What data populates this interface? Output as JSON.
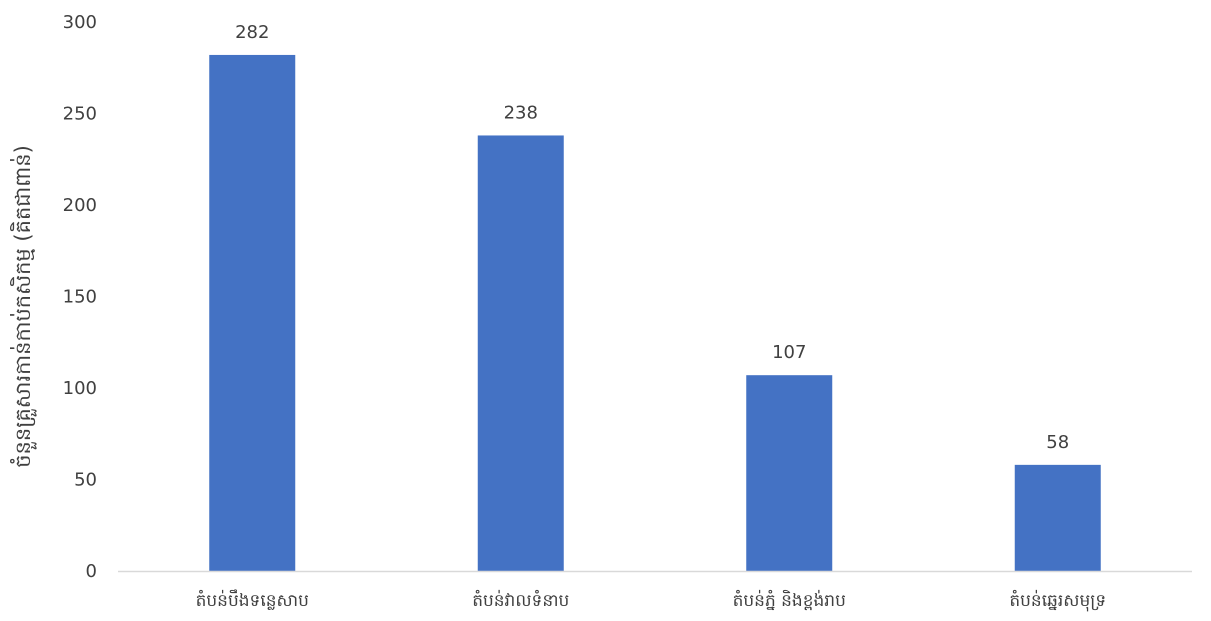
{
  "chart_data": {
    "type": "bar",
    "categories": [
      "តំបន់បឹងទន្លេសាប",
      "តំបន់វាលទំនាប",
      "តំបន់ភ្នំ និងខ្ពង់រាប",
      "តំបន់ឆ្នេរសមុទ្រ"
    ],
    "values": [
      282,
      238,
      107,
      58
    ],
    "data_labels": [
      "282",
      "238",
      "107",
      "58"
    ],
    "title": "",
    "xlabel": "",
    "ylabel": "ចំនួនគ្រួសារកាន់កាប់កសិកម្ម (គិតជាពាន់)",
    "ylim": [
      0,
      300
    ],
    "yticks": [
      0,
      50,
      100,
      150,
      200,
      250,
      300
    ],
    "bar_color": "#4472C4",
    "axis_color": "#D9D9D9",
    "grid": false,
    "legend": "none"
  }
}
